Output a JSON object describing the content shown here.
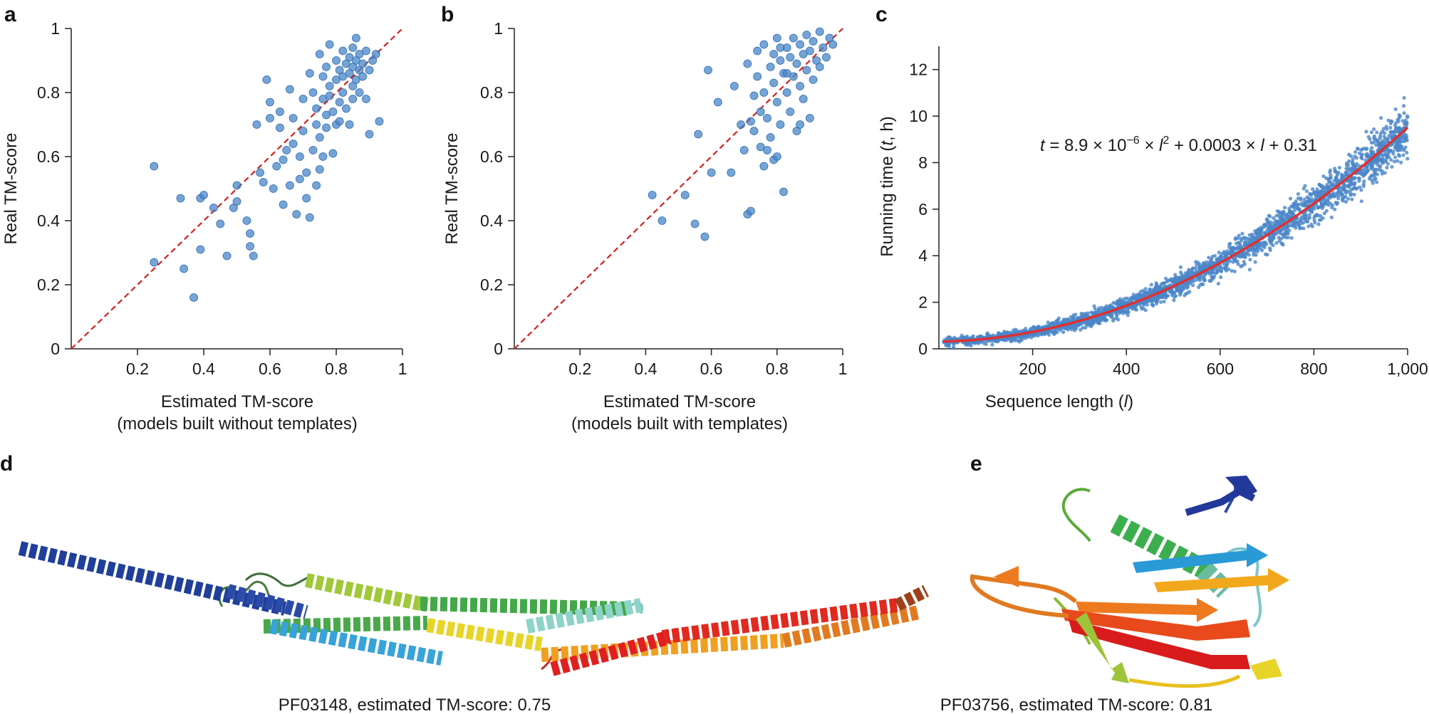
{
  "panels": {
    "a": {
      "letter": "a",
      "xlabel": "Estimated TM-score",
      "xlabel2": "(models built without templates)",
      "ylabel": "Real TM-score"
    },
    "b": {
      "letter": "b",
      "xlabel": "Estimated TM-score",
      "xlabel2": "(models built with templates)",
      "ylabel": "Real TM-score"
    },
    "c": {
      "letter": "c",
      "xlabel": "Sequence length (l)",
      "ylabel": "Running time (t, h)",
      "equation": "t = 8.9 × 10−6 × l2 + 0.0003 × l + 0.31"
    },
    "d": {
      "letter": "d",
      "caption": "PF03148, estimated TM-score: 0.75"
    },
    "e": {
      "letter": "e",
      "caption": "PF03756, estimated TM-score: 0.81"
    }
  },
  "colors": {
    "points": "#4a86c8",
    "reference_line": "#d62020",
    "fit_curve": "#e03030",
    "axis": "#222222"
  },
  "chart_data": [
    {
      "id": "a",
      "type": "scatter",
      "title": "",
      "xlabel": "Estimated TM-score (models built without templates)",
      "ylabel": "Real TM-score",
      "xlim": [
        0,
        1
      ],
      "ylim": [
        0,
        1
      ],
      "xticks": [
        "0.2",
        "0.4",
        "0.6",
        "0.8",
        "1"
      ],
      "yticks": [
        "0",
        "0.2",
        "0.4",
        "0.6",
        "0.8",
        "1"
      ],
      "reference_line": "y = x",
      "points": [
        [
          0.25,
          0.57
        ],
        [
          0.25,
          0.27
        ],
        [
          0.33,
          0.47
        ],
        [
          0.34,
          0.25
        ],
        [
          0.37,
          0.16
        ],
        [
          0.39,
          0.47
        ],
        [
          0.39,
          0.31
        ],
        [
          0.4,
          0.48
        ],
        [
          0.43,
          0.44
        ],
        [
          0.45,
          0.39
        ],
        [
          0.47,
          0.29
        ],
        [
          0.49,
          0.44
        ],
        [
          0.5,
          0.46
        ],
        [
          0.5,
          0.51
        ],
        [
          0.53,
          0.4
        ],
        [
          0.54,
          0.36
        ],
        [
          0.55,
          0.29
        ],
        [
          0.54,
          0.32
        ],
        [
          0.56,
          0.7
        ],
        [
          0.58,
          0.52
        ],
        [
          0.59,
          0.84
        ],
        [
          0.6,
          0.77
        ],
        [
          0.6,
          0.72
        ],
        [
          0.61,
          0.5
        ],
        [
          0.62,
          0.57
        ],
        [
          0.63,
          0.69
        ],
        [
          0.64,
          0.59
        ],
        [
          0.64,
          0.45
        ],
        [
          0.65,
          0.62
        ],
        [
          0.66,
          0.51
        ],
        [
          0.66,
          0.81
        ],
        [
          0.67,
          0.72
        ],
        [
          0.67,
          0.64
        ],
        [
          0.68,
          0.42
        ],
        [
          0.69,
          0.53
        ],
        [
          0.7,
          0.78
        ],
        [
          0.7,
          0.68
        ],
        [
          0.71,
          0.55
        ],
        [
          0.72,
          0.41
        ],
        [
          0.72,
          0.86
        ],
        [
          0.73,
          0.8
        ],
        [
          0.73,
          0.62
        ],
        [
          0.74,
          0.75
        ],
        [
          0.74,
          0.7
        ],
        [
          0.75,
          0.66
        ],
        [
          0.75,
          0.56
        ],
        [
          0.75,
          0.92
        ],
        [
          0.76,
          0.85
        ],
        [
          0.76,
          0.78
        ],
        [
          0.77,
          0.73
        ],
        [
          0.77,
          0.88
        ],
        [
          0.77,
          0.69
        ],
        [
          0.78,
          0.95
        ],
        [
          0.78,
          0.82
        ],
        [
          0.78,
          0.79
        ],
        [
          0.79,
          0.74
        ],
        [
          0.79,
          0.61
        ],
        [
          0.8,
          0.9
        ],
        [
          0.8,
          0.84
        ],
        [
          0.8,
          0.7
        ],
        [
          0.81,
          0.87
        ],
        [
          0.81,
          0.77
        ],
        [
          0.81,
          0.71
        ],
        [
          0.82,
          0.93
        ],
        [
          0.82,
          0.85
        ],
        [
          0.82,
          0.8
        ],
        [
          0.83,
          0.89
        ],
        [
          0.83,
          0.75
        ],
        [
          0.84,
          0.91
        ],
        [
          0.84,
          0.86
        ],
        [
          0.84,
          0.7
        ],
        [
          0.85,
          0.94
        ],
        [
          0.85,
          0.88
        ],
        [
          0.85,
          0.82
        ],
        [
          0.85,
          0.78
        ],
        [
          0.86,
          0.97
        ],
        [
          0.86,
          0.9
        ],
        [
          0.86,
          0.84
        ],
        [
          0.87,
          0.92
        ],
        [
          0.87,
          0.87
        ],
        [
          0.87,
          0.8
        ],
        [
          0.88,
          0.89
        ],
        [
          0.88,
          0.85
        ],
        [
          0.89,
          0.93
        ],
        [
          0.89,
          0.78
        ],
        [
          0.9,
          0.87
        ],
        [
          0.9,
          0.67
        ],
        [
          0.91,
          0.9
        ],
        [
          0.92,
          0.92
        ],
        [
          0.93,
          0.71
        ],
        [
          0.69,
          0.6
        ],
        [
          0.71,
          0.47
        ],
        [
          0.76,
          0.6
        ],
        [
          0.74,
          0.51
        ],
        [
          0.57,
          0.55
        ],
        [
          0.63,
          0.74
        ]
      ]
    },
    {
      "id": "b",
      "type": "scatter",
      "title": "",
      "xlabel": "Estimated TM-score (models built with templates)",
      "ylabel": "Real TM-score",
      "xlim": [
        0,
        1
      ],
      "ylim": [
        0,
        1
      ],
      "xticks": [
        "0.2",
        "0.4",
        "0.6",
        "0.8",
        "1"
      ],
      "yticks": [
        "0",
        "0.2",
        "0.4",
        "0.6",
        "0.8",
        "1"
      ],
      "reference_line": "y = x",
      "points": [
        [
          0.42,
          0.48
        ],
        [
          0.45,
          0.4
        ],
        [
          0.52,
          0.48
        ],
        [
          0.55,
          0.39
        ],
        [
          0.56,
          0.67
        ],
        [
          0.58,
          0.35
        ],
        [
          0.59,
          0.87
        ],
        [
          0.6,
          0.55
        ],
        [
          0.62,
          0.77
        ],
        [
          0.66,
          0.55
        ],
        [
          0.67,
          0.82
        ],
        [
          0.69,
          0.7
        ],
        [
          0.7,
          0.62
        ],
        [
          0.71,
          0.42
        ],
        [
          0.71,
          0.89
        ],
        [
          0.72,
          0.71
        ],
        [
          0.72,
          0.43
        ],
        [
          0.73,
          0.79
        ],
        [
          0.73,
          0.68
        ],
        [
          0.74,
          0.93
        ],
        [
          0.74,
          0.85
        ],
        [
          0.75,
          0.74
        ],
        [
          0.75,
          0.63
        ],
        [
          0.76,
          0.95
        ],
        [
          0.76,
          0.8
        ],
        [
          0.77,
          0.72
        ],
        [
          0.78,
          0.88
        ],
        [
          0.78,
          0.66
        ],
        [
          0.79,
          0.92
        ],
        [
          0.79,
          0.83
        ],
        [
          0.79,
          0.59
        ],
        [
          0.8,
          0.97
        ],
        [
          0.8,
          0.77
        ],
        [
          0.81,
          0.9
        ],
        [
          0.81,
          0.7
        ],
        [
          0.82,
          0.86
        ],
        [
          0.82,
          0.49
        ],
        [
          0.83,
          0.94
        ],
        [
          0.83,
          0.8
        ],
        [
          0.84,
          0.91
        ],
        [
          0.84,
          0.74
        ],
        [
          0.85,
          0.97
        ],
        [
          0.85,
          0.85
        ],
        [
          0.86,
          0.89
        ],
        [
          0.86,
          0.68
        ],
        [
          0.87,
          0.95
        ],
        [
          0.87,
          0.82
        ],
        [
          0.88,
          0.92
        ],
        [
          0.88,
          0.78
        ],
        [
          0.89,
          0.98
        ],
        [
          0.89,
          0.87
        ],
        [
          0.9,
          0.93
        ],
        [
          0.9,
          0.72
        ],
        [
          0.91,
          0.96
        ],
        [
          0.91,
          0.84
        ],
        [
          0.92,
          0.9
        ],
        [
          0.93,
          0.99
        ],
        [
          0.93,
          0.88
        ],
        [
          0.94,
          0.94
        ],
        [
          0.95,
          0.91
        ],
        [
          0.96,
          0.97
        ],
        [
          0.97,
          0.95
        ],
        [
          0.76,
          0.57
        ],
        [
          0.8,
          0.6
        ],
        [
          0.83,
          0.86
        ],
        [
          0.87,
          0.7
        ],
        [
          0.81,
          0.94
        ],
        [
          0.77,
          0.62
        ]
      ]
    },
    {
      "id": "c",
      "type": "scatter",
      "title": "",
      "xlabel": "Sequence length (l)",
      "ylabel": "Running time (t, h)",
      "xlim": [
        0,
        1000
      ],
      "ylim": [
        0,
        13
      ],
      "xticks": [
        "200",
        "400",
        "600",
        "800",
        "1,000"
      ],
      "yticks": [
        "0",
        "2",
        "4",
        "6",
        "8",
        "10",
        "12"
      ],
      "fit": {
        "a": 8.9e-06,
        "b": 0.0003,
        "c": 0.31,
        "equation": "t = 8.9e-6 * l^2 + 0.0003 * l + 0.31"
      },
      "points_description": "about 2,800 runs scattered around the fitted curve for l in 0-1,000, spread growing with l"
    }
  ]
}
